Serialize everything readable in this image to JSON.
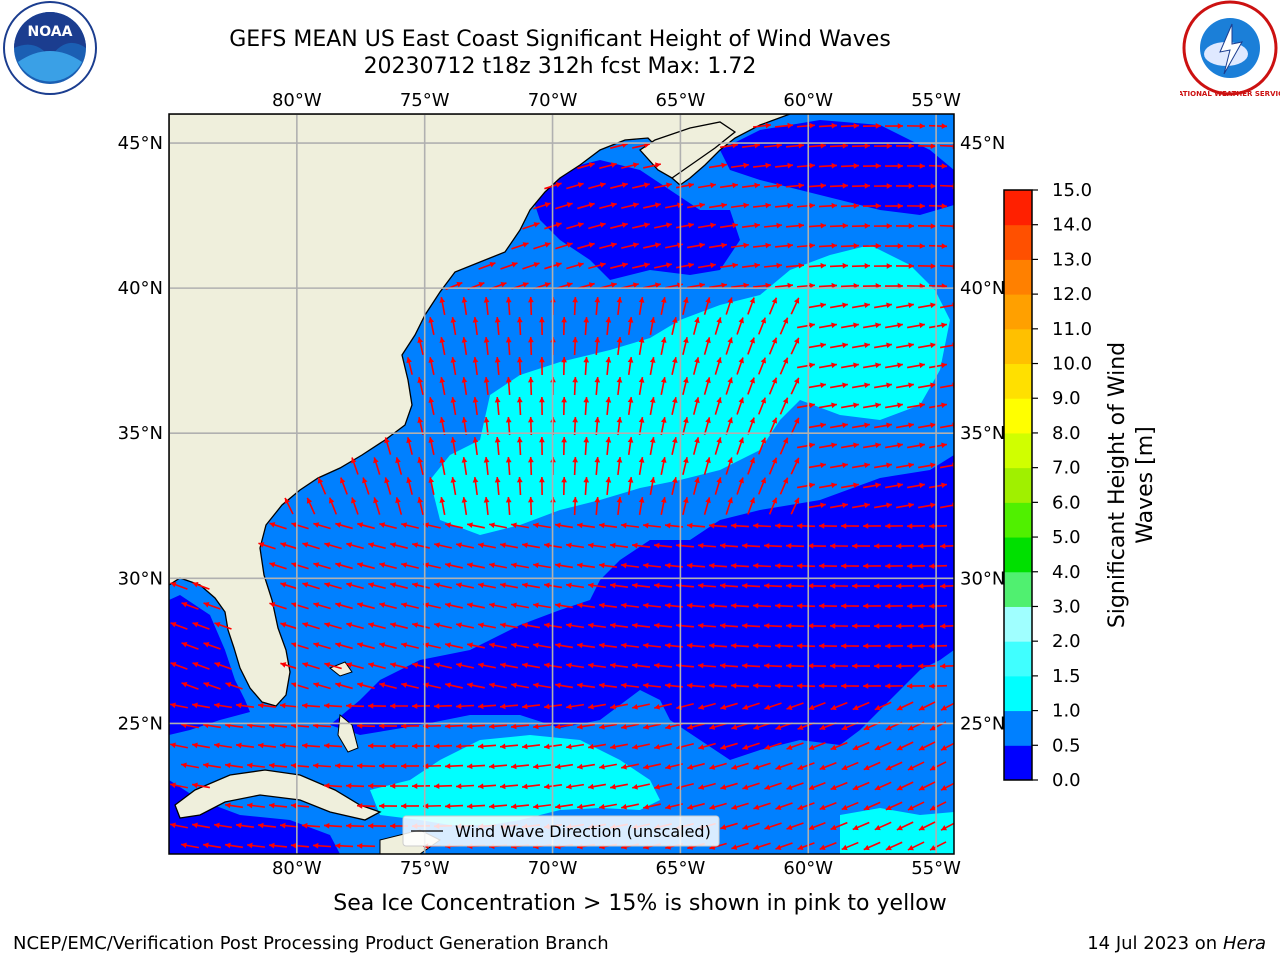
{
  "title": {
    "line1": "GEFS MEAN US East Coast Significant Height of Wind Waves",
    "line2": "20230712 t18z 312h fcst   Max: 1.72"
  },
  "axes": {
    "lon_labels": [
      "80°W",
      "75°W",
      "70°W",
      "65°W",
      "60°W",
      "55°W"
    ],
    "lat_labels": [
      "45°N",
      "40°N",
      "35°N",
      "30°N",
      "25°N"
    ],
    "lon_values": [
      -80,
      -75,
      -70,
      -65,
      -60,
      -55
    ],
    "lat_values": [
      45,
      40,
      35,
      30,
      25
    ],
    "lon_range": [
      -85,
      -54.3
    ],
    "lat_range": [
      20.5,
      46
    ],
    "grid": true
  },
  "colorbar": {
    "label": "Significant Height of Wind Waves [m]",
    "ticks": [
      "0.0",
      "0.5",
      "1.0",
      "1.5",
      "2.0",
      "3.0",
      "4.0",
      "5.0",
      "6.0",
      "7.0",
      "8.0",
      "9.0",
      "10.0",
      "11.0",
      "12.0",
      "13.0",
      "14.0",
      "15.0"
    ],
    "colors": [
      "#0000ff",
      "#0080ff",
      "#00ffff",
      "#40ffff",
      "#a0ffff",
      "#50f070",
      "#00e000",
      "#50f000",
      "#a0f000",
      "#d0ff00",
      "#ffff00",
      "#ffe000",
      "#ffc000",
      "#ffa000",
      "#ff8000",
      "#ff5000",
      "#ff2000"
    ]
  },
  "legend": {
    "label": "Wind Wave Direction (unscaled)"
  },
  "colors": {
    "land": "#efefdc",
    "arrow": "#ff0000",
    "grid": "#b0b0b0",
    "band_0_0.5": "#0000ff",
    "band_0.5_1.0": "#0080ff",
    "band_1.0_1.5": "#00ffff"
  },
  "footer": {
    "sea_ice_note": "Sea Ice Concentration > 15% is shown in pink to yellow",
    "credit_left": "NCEP/EMC/Verification Post Processing Product Generation Branch",
    "credit_right_prefix": "14 Jul 2023 on ",
    "credit_right_machine": "Hera"
  },
  "logos": {
    "left": "NOAA",
    "right": "NATIONAL WEATHER SERVICE"
  }
}
